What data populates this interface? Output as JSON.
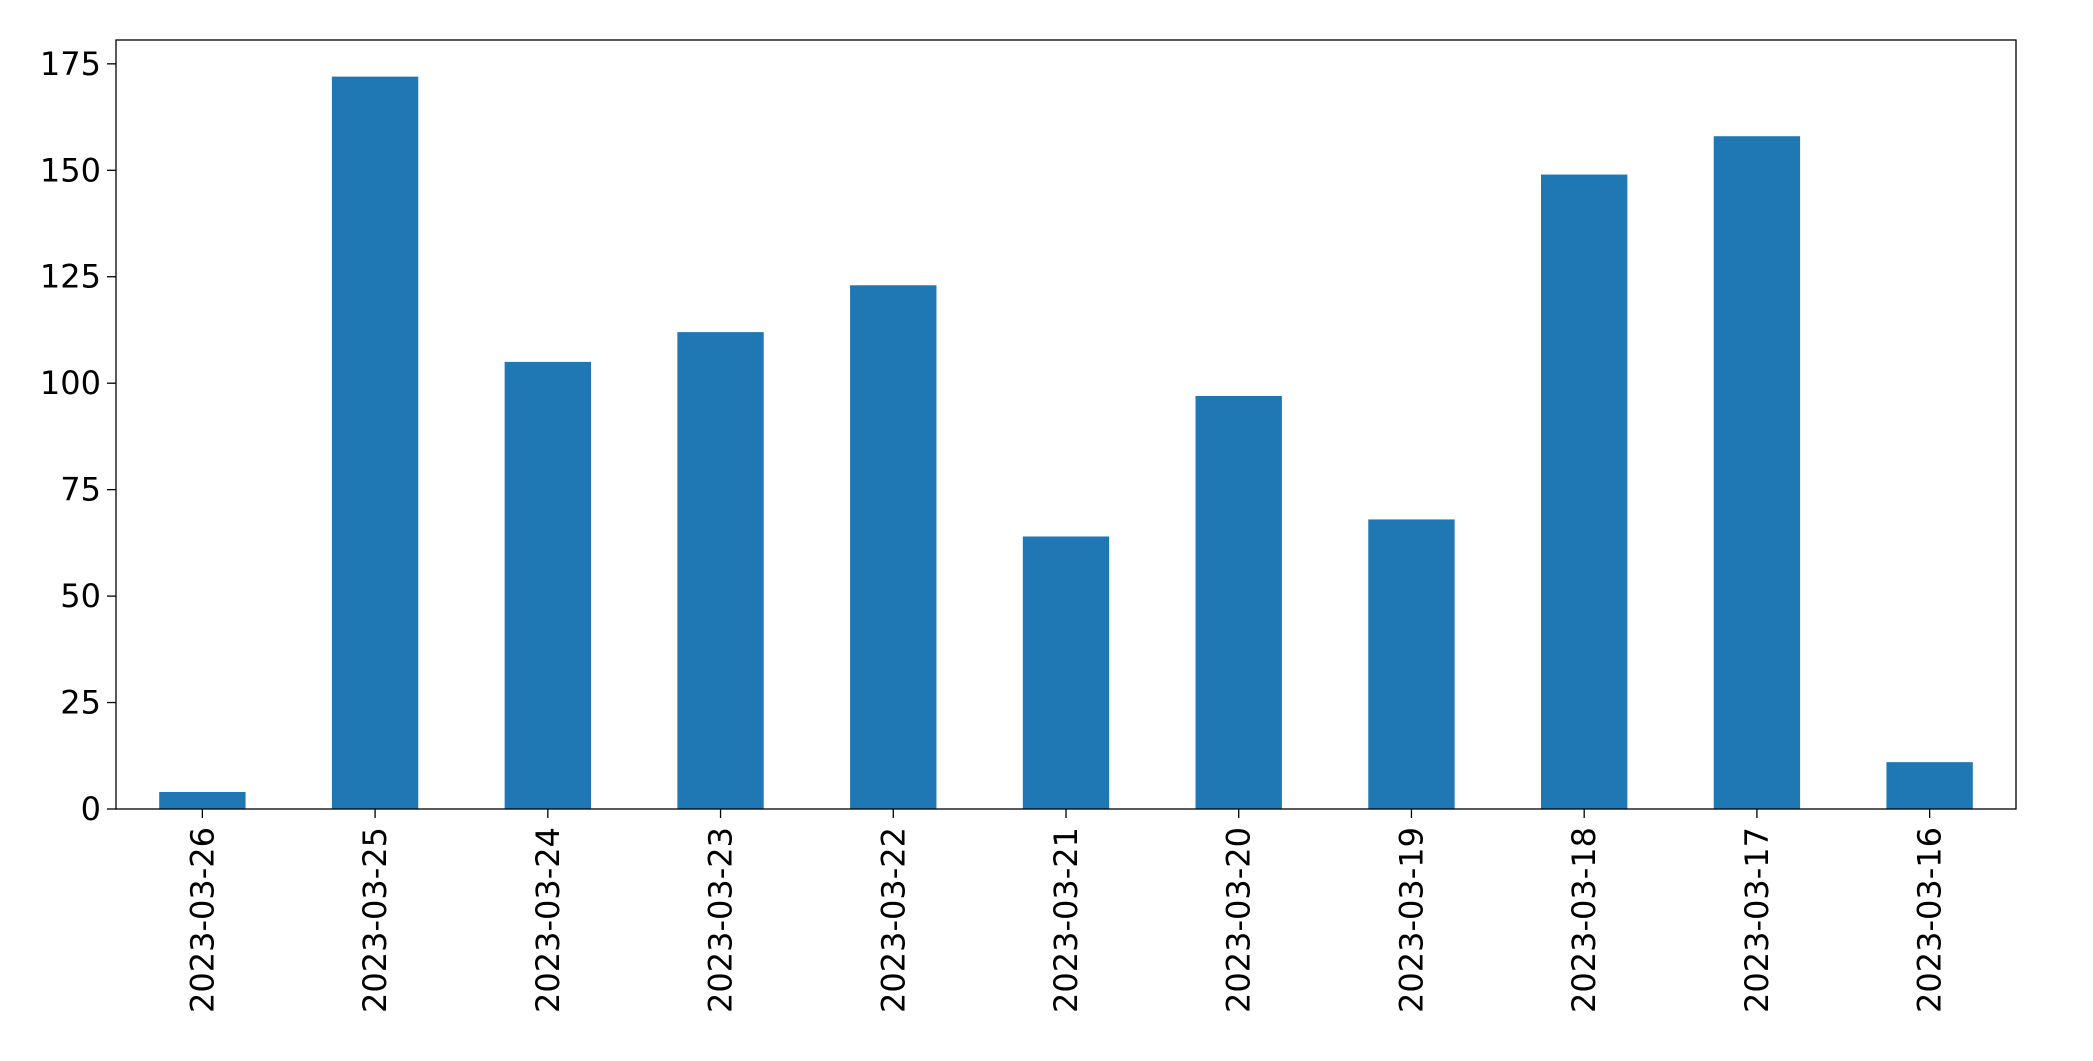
{
  "chart_data": {
    "type": "bar",
    "categories": [
      "2023-03-26",
      "2023-03-25",
      "2023-03-24",
      "2023-03-23",
      "2023-03-22",
      "2023-03-21",
      "2023-03-20",
      "2023-03-19",
      "2023-03-18",
      "2023-03-17",
      "2023-03-16"
    ],
    "values": [
      4,
      172,
      105,
      112,
      123,
      64,
      97,
      68,
      149,
      158,
      11
    ],
    "color": "#1f77b4",
    "ylim": [
      0,
      180.6
    ],
    "yticks": [
      0,
      25,
      50,
      75,
      100,
      125,
      150,
      175
    ],
    "grid": false
  }
}
